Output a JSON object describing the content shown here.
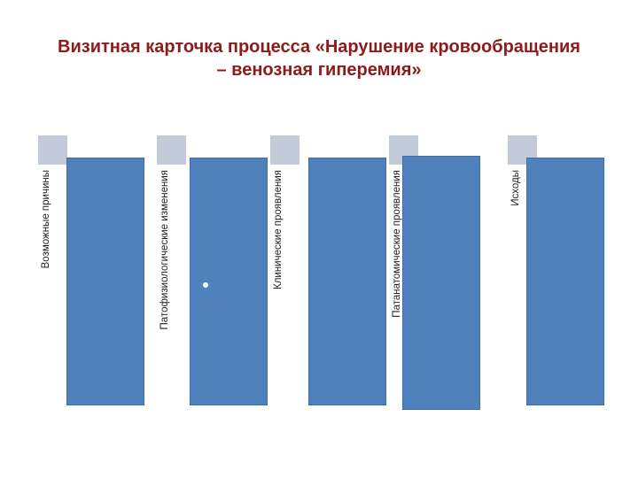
{
  "slide": {
    "title_line1": "Визитная карточка процесса «Нарушение кровообращения",
    "title_line2": "– венозная гиперемия»"
  },
  "columns": [
    {
      "label": "Возможные причины"
    },
    {
      "label": "Патофизиологические изменения"
    },
    {
      "label": "Клинические проявления"
    },
    {
      "label": "Патанатомические проявления"
    },
    {
      "label": "Исходы"
    }
  ],
  "colors": {
    "title": "#8c1b1b",
    "panel": "#4f81bd",
    "tab": "#c3cad9"
  }
}
